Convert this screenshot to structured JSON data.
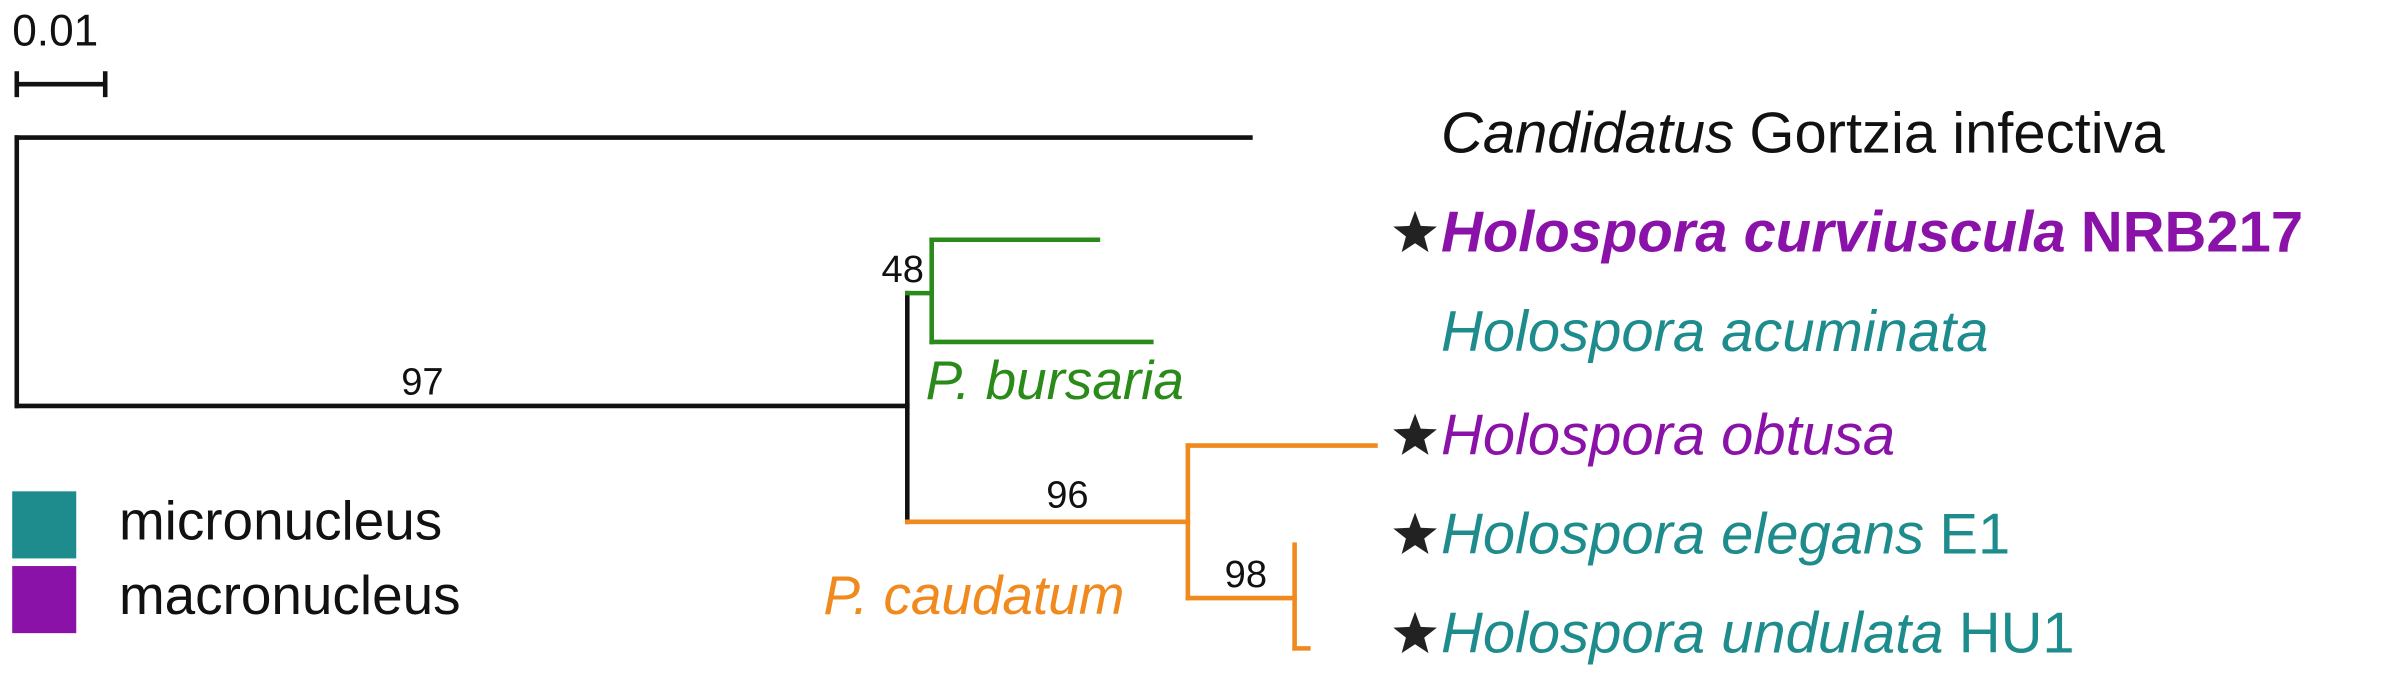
{
  "scale_label": "0.01",
  "leaves": [
    {
      "parts": [
        {
          "text": "Candidatus",
          "italic": true
        },
        {
          "text": "Gortzia infectiva"
        }
      ],
      "color": "#111111",
      "starred": false,
      "bold": false
    },
    {
      "parts": [
        {
          "text": "Holospora curviuscula",
          "italic": true
        },
        {
          "text": "NRB217"
        }
      ],
      "color": "#8a12a8",
      "starred": true,
      "bold": true
    },
    {
      "parts": [
        {
          "text": "Holospora acuminata",
          "italic": true
        }
      ],
      "color": "#1e8c8c",
      "starred": false,
      "bold": false
    },
    {
      "parts": [
        {
          "text": "Holospora obtusa",
          "italic": true
        }
      ],
      "color": "#8a12a8",
      "starred": true,
      "bold": false
    },
    {
      "parts": [
        {
          "text": "Holospora elegans",
          "italic": true
        },
        {
          "text": "E1"
        }
      ],
      "color": "#1e8c8c",
      "starred": true,
      "bold": false
    },
    {
      "parts": [
        {
          "text": "Holospora undulata",
          "italic": true
        },
        {
          "text": "HU1"
        }
      ],
      "color": "#1e8c8c",
      "starred": true,
      "bold": false
    }
  ],
  "bootstrap": [
    "97",
    "48",
    "96",
    "98"
  ],
  "hosts": [
    {
      "text": "P. bursaria",
      "color": "#2a8a1a"
    },
    {
      "text": "P. caudatum",
      "color": "#f08a1e"
    }
  ],
  "legend": [
    {
      "text": "micronucleus",
      "color": "#1e8c8c"
    },
    {
      "text": "macronucleus",
      "color": "#8a12a8"
    }
  ]
}
